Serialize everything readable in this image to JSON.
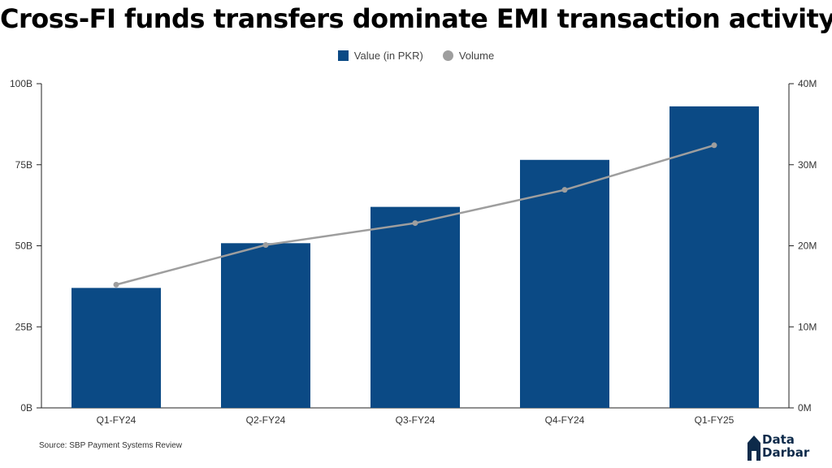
{
  "title": "Cross-FI funds transfers dominate EMI transaction activity",
  "legend": {
    "bar_label": "Value (in PKR)",
    "line_label": "Volume"
  },
  "source": "Source: SBP Payment Systems Review",
  "logo": {
    "line1": "Data",
    "line2": "Darbar",
    "icon": "house-icon"
  },
  "colors": {
    "bar": "#0b4a85",
    "line": "#9e9e9e",
    "axis": "#222222"
  },
  "chart_data": {
    "type": "bar",
    "title": "Cross-FI funds transfers dominate EMI transaction activity",
    "categories": [
      "Q1-FY24",
      "Q2-FY24",
      "Q3-FY24",
      "Q4-FY24",
      "Q1-FY25"
    ],
    "series": [
      {
        "name": "Value (in PKR)",
        "type": "bar",
        "axis": "left",
        "values": [
          37000000000,
          50800000000,
          62000000000,
          76500000000,
          93000000000
        ]
      },
      {
        "name": "Volume",
        "type": "line",
        "axis": "right",
        "values": [
          15200000,
          20100000,
          22800000,
          26900000,
          32400000
        ]
      }
    ],
    "y_left": {
      "lim": [
        0,
        100000000000
      ],
      "ticks": [
        0,
        25000000000,
        50000000000,
        75000000000,
        100000000000
      ],
      "tick_labels": [
        "0B",
        "25B",
        "50B",
        "75B",
        "100B"
      ]
    },
    "y_right": {
      "lim": [
        0,
        40000000
      ],
      "ticks": [
        0,
        10000000,
        20000000,
        30000000,
        40000000
      ],
      "tick_labels": [
        "0M",
        "10M",
        "20M",
        "30M",
        "40M"
      ]
    },
    "grid": false,
    "legend_position": "top-center"
  }
}
